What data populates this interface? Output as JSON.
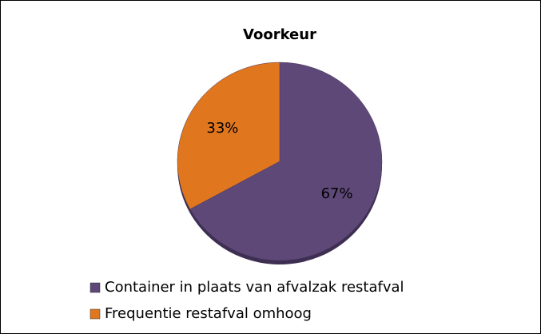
{
  "chart_data": {
    "type": "pie",
    "title": "Voorkeur",
    "categories": [
      "Container in plaats van afvalzak restafval",
      "Frequentie restafval omhoog"
    ],
    "values": [
      67,
      33
    ],
    "value_labels": [
      "67%",
      "33%"
    ],
    "colors": [
      "#5d4878",
      "#e0761e"
    ]
  }
}
